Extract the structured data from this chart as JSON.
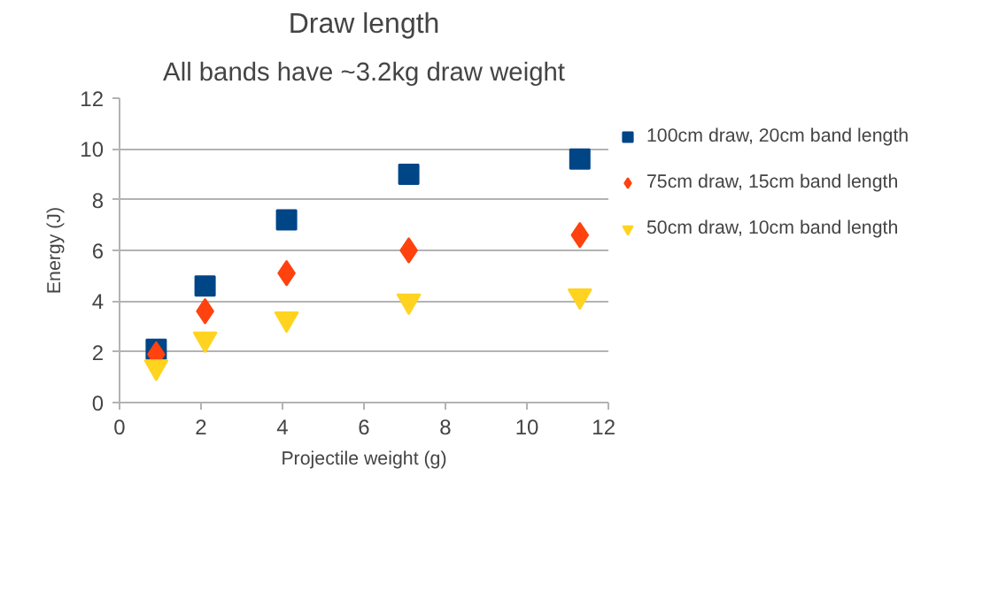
{
  "chart_data": {
    "type": "scatter",
    "title": "Draw length",
    "subtitle": "All bands have ~3.2kg draw weight",
    "xlabel": "Projectile weight (g)",
    "ylabel": "Energy (J)",
    "x": [
      0.9,
      2.1,
      4.1,
      7.1,
      11.3
    ],
    "series": [
      {
        "name": "100cm draw, 20cm band length",
        "color": "#004586",
        "marker": "square",
        "values": [
          2.1,
          4.6,
          7.2,
          9.0,
          9.6
        ]
      },
      {
        "name": "75cm draw, 15cm band length",
        "color": "#ff420e",
        "marker": "diamond",
        "values": [
          1.9,
          3.6,
          5.1,
          6.0,
          6.6
        ]
      },
      {
        "name": "50cm draw, 10cm band length",
        "color": "#ffd320",
        "marker": "triangle",
        "values": [
          1.4,
          2.5,
          3.3,
          4.0,
          4.2
        ]
      }
    ],
    "xlim": [
      0,
      12
    ],
    "xticks": [
      0,
      2,
      4,
      6,
      8,
      10,
      12
    ],
    "ylim": [
      0,
      12
    ],
    "yticks": [
      0,
      2,
      4,
      6,
      8,
      10,
      12
    ],
    "grid": "y",
    "legend": "right"
  }
}
